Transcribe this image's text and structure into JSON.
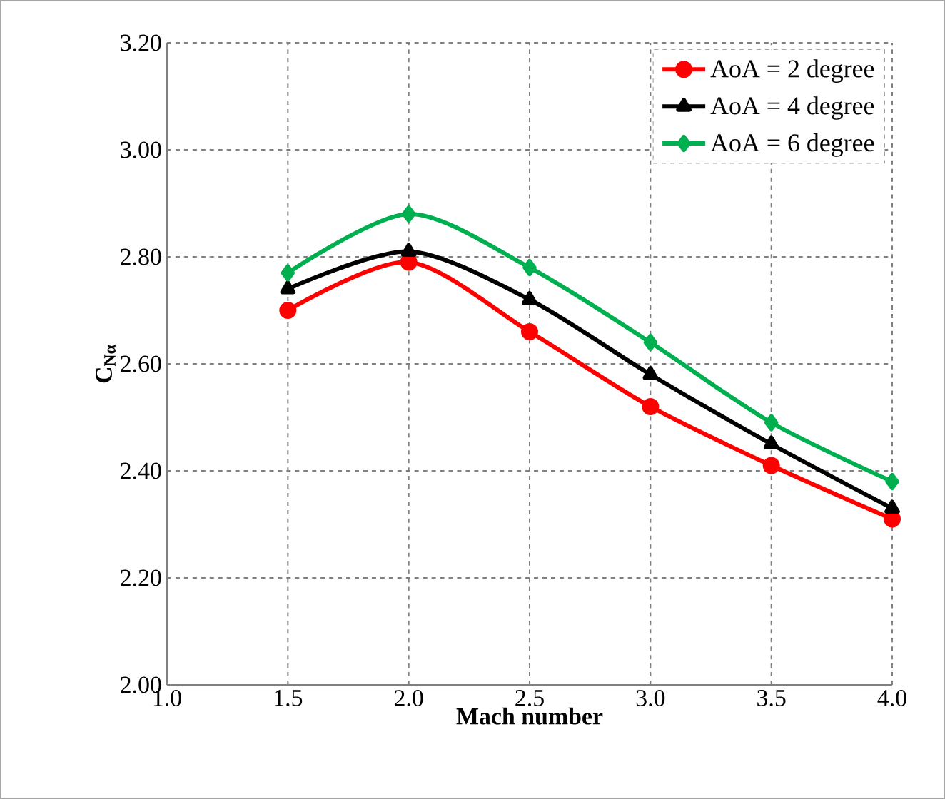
{
  "chart_data": {
    "type": "line",
    "xlabel": "Mach number",
    "ylabel": "C$_{Nα}$",
    "x": [
      1.5,
      2.0,
      2.5,
      3.0,
      3.5,
      4.0
    ],
    "series": [
      {
        "name": "AoA = 2 degree",
        "color": "#ff0000",
        "marker": "circle",
        "values": [
          2.7,
          2.79,
          2.66,
          2.52,
          2.41,
          2.31
        ]
      },
      {
        "name": "AoA = 4 degree",
        "color": "#000000",
        "marker": "triangle",
        "values": [
          2.74,
          2.81,
          2.72,
          2.58,
          2.45,
          2.33
        ]
      },
      {
        "name": "AoA = 6 degree",
        "color": "#00b050",
        "marker": "diamond",
        "values": [
          2.77,
          2.88,
          2.78,
          2.64,
          2.49,
          2.38
        ]
      }
    ],
    "xlim": [
      1.0,
      4.0
    ],
    "xticks": [
      {
        "value": 1.0,
        "label": "1.0"
      },
      {
        "value": 1.5,
        "label": "1.5"
      },
      {
        "value": 2.0,
        "label": "2.0"
      },
      {
        "value": 2.5,
        "label": "2.5"
      },
      {
        "value": 3.0,
        "label": "3.0"
      },
      {
        "value": 3.5,
        "label": "3.5"
      },
      {
        "value": 4.0,
        "label": "4.0"
      }
    ],
    "ylim": [
      2.0,
      3.2
    ],
    "yticks": [
      {
        "value": 2.0,
        "label": "2.00"
      },
      {
        "value": 2.2,
        "label": "2.20"
      },
      {
        "value": 2.4,
        "label": "2.40"
      },
      {
        "value": 2.6,
        "label": "2.60"
      },
      {
        "value": 2.8,
        "label": "2.80"
      },
      {
        "value": 3.0,
        "label": "3.00"
      },
      {
        "value": 3.2,
        "label": "3.20"
      }
    ],
    "grid": true,
    "legend": "top right",
    "line_style": "solid"
  }
}
